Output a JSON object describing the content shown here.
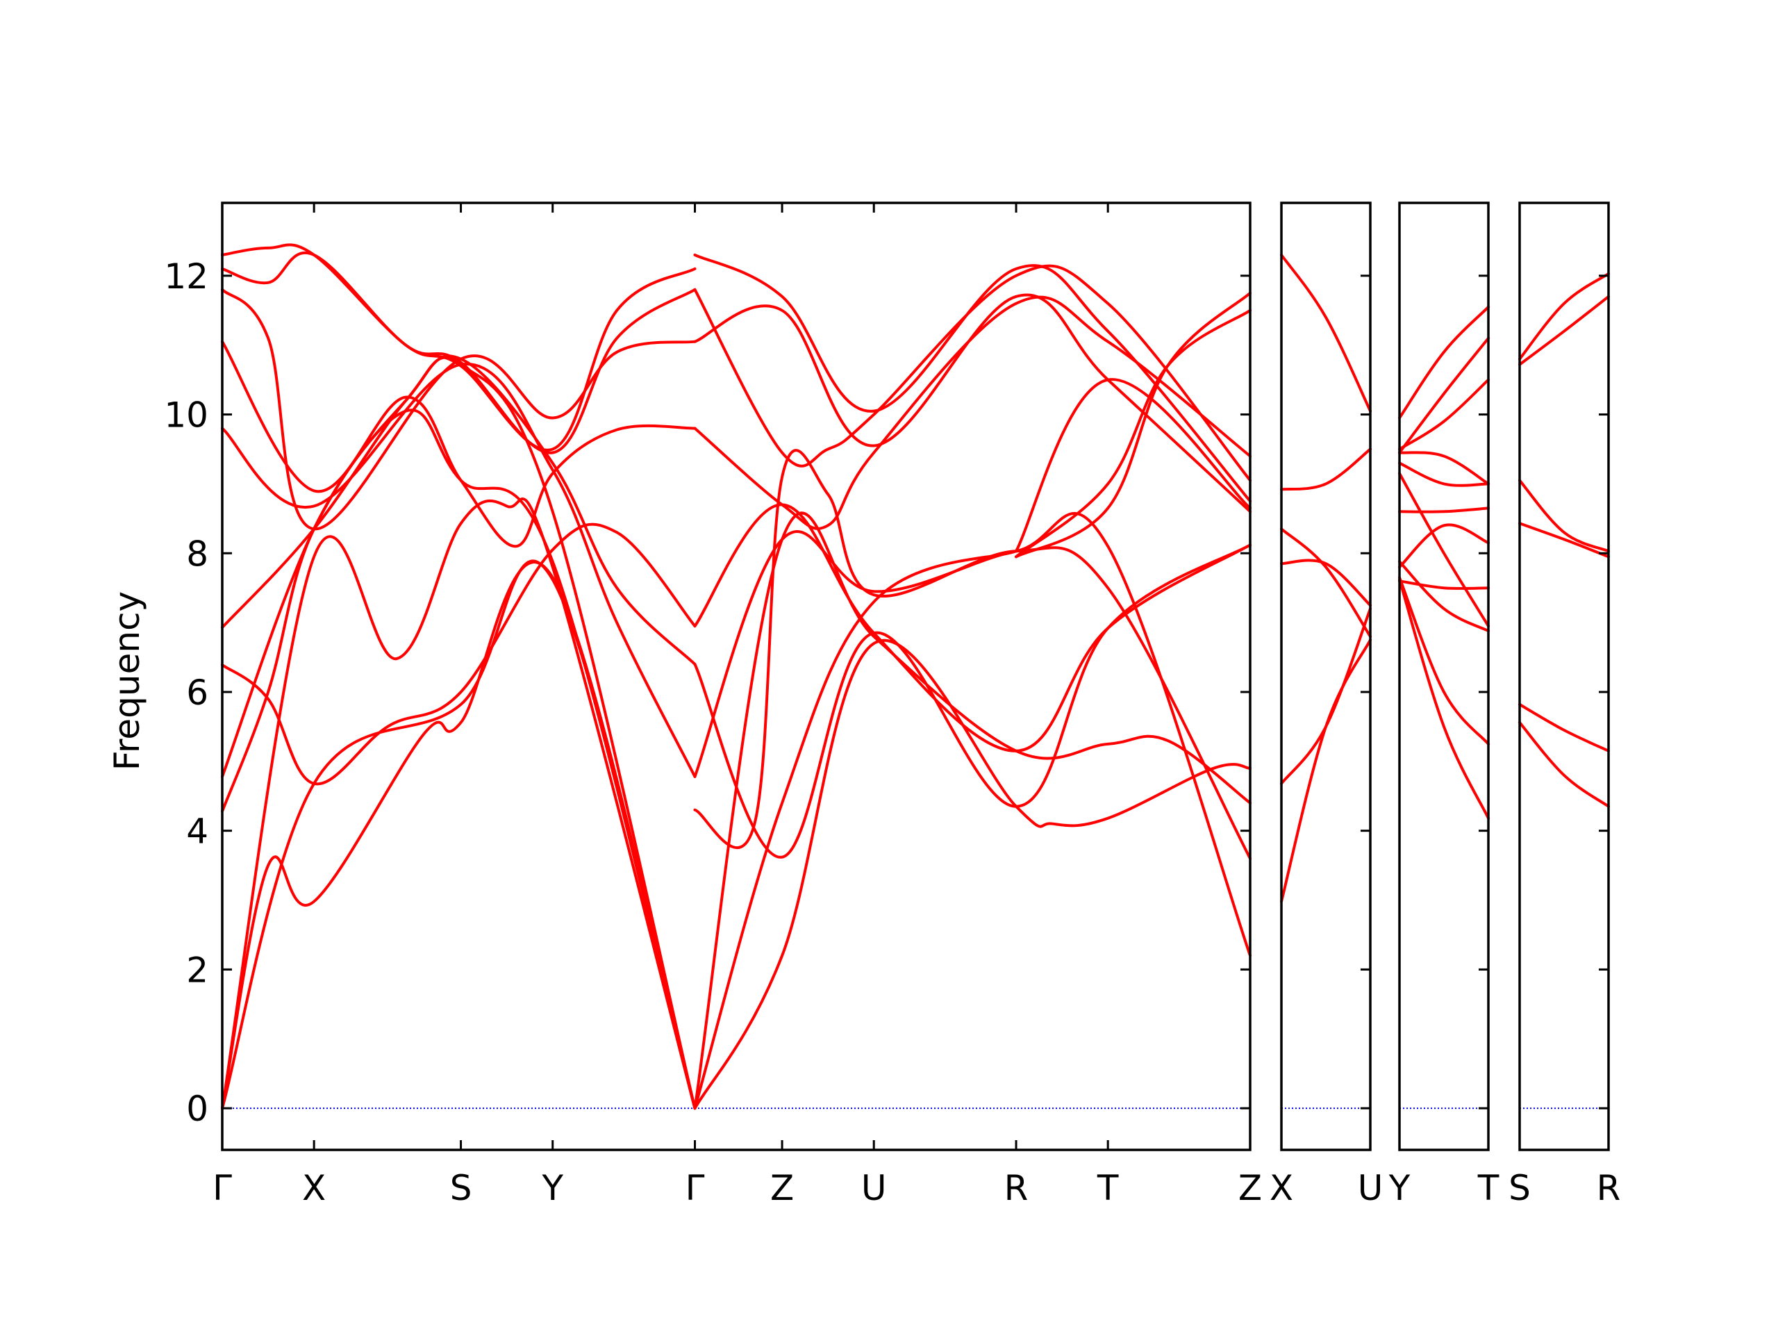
{
  "chart_data": {
    "type": "line",
    "ylabel": "Frequency",
    "ylim": [
      -0.6,
      13.05
    ],
    "yticks": [
      0,
      2,
      4,
      6,
      8,
      10,
      12
    ],
    "line_color": "#ff0000",
    "zero_line_color": "#0000ff",
    "panels": [
      {
        "points": [
          "Γ",
          "X",
          "S",
          "Y",
          "Γ",
          "Z",
          "U",
          "R",
          "T",
          "Z"
        ],
        "point_positions": [
          0,
          1,
          2.6,
          3.6,
          5.15,
          6.1,
          7.1,
          8.65,
          9.65,
          11.2
        ],
        "bands": [
          [
            [
              0,
              0
            ],
            [
              0.5,
              3.5
            ],
            [
              1,
              2.98
            ],
            [
              2.2,
              5.4
            ],
            [
              2.6,
              5.56
            ],
            [
              3.6,
              7.65
            ],
            [
              5.15,
              0
            ]
          ],
          [
            [
              0,
              0
            ],
            [
              1,
              4.68
            ],
            [
              2.6,
              5.82
            ],
            [
              3.6,
              7.62
            ],
            [
              5.15,
              0
            ]
          ],
          [
            [
              0,
              0
            ],
            [
              1,
              7.95
            ],
            [
              1.9,
              6.48
            ],
            [
              2.6,
              8.43
            ],
            [
              3.1,
              8.68
            ],
            [
              3.6,
              7.8
            ],
            [
              5.15,
              0
            ]
          ],
          [
            [
              0,
              4.28
            ],
            [
              0.5,
              6.0
            ],
            [
              1,
              8.35
            ],
            [
              2.0,
              10.05
            ],
            [
              2.6,
              9.05
            ],
            [
              3.6,
              7.88
            ],
            [
              5.15,
              0
            ]
          ],
          [
            [
              0,
              4.78
            ],
            [
              1,
              8.35
            ],
            [
              2.0,
              10.2
            ],
            [
              2.6,
              10.72
            ],
            [
              3.6,
              8.6
            ],
            [
              5.15,
              0
            ]
          ],
          [
            [
              0,
              6.39
            ],
            [
              0.5,
              5.9
            ],
            [
              1,
              4.68
            ],
            [
              1.8,
              5.5
            ],
            [
              2.6,
              6.0
            ],
            [
              3.6,
              8.05
            ],
            [
              4.3,
              8.3
            ],
            [
              5.15,
              6.95
            ]
          ],
          [
            [
              0,
              6.93
            ],
            [
              1,
              8.35
            ],
            [
              2.0,
              10.2
            ],
            [
              2.6,
              10.8
            ],
            [
              3.6,
              9.3
            ],
            [
              4.3,
              7.5
            ],
            [
              5.15,
              6.4
            ]
          ],
          [
            [
              0,
              9.8
            ],
            [
              1,
              8.68
            ],
            [
              2.6,
              10.72
            ],
            [
              3.6,
              9.2
            ],
            [
              4.3,
              7.0
            ],
            [
              5.15,
              4.78
            ]
          ],
          [
            [
              0,
              11.05
            ],
            [
              1,
              8.9
            ],
            [
              2.0,
              10.25
            ],
            [
              2.6,
              9.05
            ],
            [
              3.2,
              8.1
            ],
            [
              3.6,
              9.15
            ],
            [
              4.3,
              9.78
            ],
            [
              5.15,
              9.8
            ]
          ],
          [
            [
              0,
              11.8
            ],
            [
              0.5,
              11.1
            ],
            [
              1,
              8.35
            ],
            [
              2.6,
              10.8
            ],
            [
              3.6,
              9.95
            ],
            [
              4.3,
              10.9
            ],
            [
              5.15,
              11.05
            ]
          ],
          [
            [
              0,
              12.1
            ],
            [
              0.5,
              11.9
            ],
            [
              1,
              12.3
            ],
            [
              2.0,
              11.0
            ],
            [
              2.6,
              10.75
            ],
            [
              3.6,
              9.45
            ],
            [
              4.3,
              11.1
            ],
            [
              5.15,
              11.8
            ]
          ],
          [
            [
              0,
              12.3
            ],
            [
              0.5,
              12.4
            ],
            [
              1,
              12.3
            ],
            [
              2.0,
              11.0
            ],
            [
              2.6,
              10.7
            ],
            [
              3.6,
              9.5
            ],
            [
              4.3,
              11.5
            ],
            [
              5.15,
              12.1
            ]
          ],
          [
            [
              5.15,
              0
            ],
            [
              6.1,
              4.4
            ],
            [
              7.1,
              7.3
            ],
            [
              8.65,
              8.03
            ]
          ],
          [
            [
              5.15,
              0
            ],
            [
              6.1,
              2.2
            ],
            [
              7.1,
              6.7
            ],
            [
              8.65,
              4.35
            ],
            [
              9.05,
              4.1
            ],
            [
              9.65,
              4.18
            ],
            [
              10.8,
              4.9
            ],
            [
              11.2,
              4.9
            ]
          ],
          [
            [
              5.15,
              0
            ],
            [
              6.1,
              8.2
            ],
            [
              7.1,
              6.8
            ],
            [
              8.65,
              5.15
            ],
            [
              9.65,
              5.25
            ],
            [
              10.3,
              5.3
            ],
            [
              11.2,
              4.4
            ]
          ],
          [
            [
              5.15,
              6.4
            ],
            [
              6.1,
              3.62
            ],
            [
              7.1,
              6.85
            ],
            [
              8.65,
              4.35
            ],
            [
              9.65,
              6.92
            ],
            [
              11.2,
              8.12
            ]
          ],
          [
            [
              5.15,
              6.95
            ],
            [
              6.1,
              8.7
            ],
            [
              7.1,
              6.85
            ],
            [
              8.65,
              5.15
            ],
            [
              9.65,
              6.92
            ],
            [
              11.2,
              8.12
            ]
          ],
          [
            [
              5.15,
              4.78
            ],
            [
              6.1,
              8.2
            ],
            [
              7.1,
              7.45
            ],
            [
              8.65,
              8.03
            ],
            [
              9.65,
              8.1
            ],
            [
              11.2,
              2.2
            ]
          ],
          [
            [
              5.15,
              4.3
            ],
            [
              5.8,
              4.1
            ],
            [
              6.1,
              9.1
            ],
            [
              6.6,
              8.85
            ],
            [
              7.1,
              7.4
            ],
            [
              8.65,
              8.03
            ],
            [
              9.65,
              7.5
            ],
            [
              11.2,
              3.6
            ]
          ],
          [
            [
              5.15,
              9.8
            ],
            [
              6.1,
              8.7
            ],
            [
              6.6,
              8.4
            ],
            [
              7.1,
              9.45
            ],
            [
              8.65,
              11.6
            ],
            [
              9.65,
              11.05
            ],
            [
              11.2,
              9.4
            ]
          ],
          [
            [
              5.15,
              11.05
            ],
            [
              6.1,
              11.5
            ],
            [
              7.1,
              9.55
            ],
            [
              8.65,
              11.7
            ],
            [
              9.65,
              10.5
            ],
            [
              11.2,
              8.6
            ]
          ],
          [
            [
              5.15,
              11.8
            ],
            [
              6.1,
              9.45
            ],
            [
              6.6,
              9.5
            ],
            [
              7.1,
              10.0
            ],
            [
              8.65,
              12.0
            ],
            [
              9.65,
              11.6
            ],
            [
              11.2,
              9.05
            ]
          ],
          [
            [
              5.15,
              12.3
            ],
            [
              6.1,
              11.7
            ],
            [
              7.1,
              10.05
            ],
            [
              8.65,
              12.1
            ],
            [
              9.65,
              11.2
            ],
            [
              11.2,
              8.75
            ]
          ],
          [
            [
              8.65,
              7.95
            ],
            [
              9.65,
              9.0
            ],
            [
              10.3,
              10.7
            ],
            [
              11.2,
              11.5
            ]
          ],
          [
            [
              8.65,
              7.95
            ],
            [
              9.65,
              8.65
            ],
            [
              10.3,
              10.7
            ],
            [
              11.2,
              11.75
            ]
          ],
          [
            [
              8.65,
              8.03
            ],
            [
              9.65,
              10.5
            ],
            [
              11.2,
              8.65
            ]
          ]
        ]
      },
      {
        "points": [
          "X",
          "U"
        ],
        "point_positions": [
          0,
          1
        ],
        "bands": [
          [
            [
              0,
              2.98
            ],
            [
              0.5,
              5.5
            ],
            [
              1,
              6.75
            ]
          ],
          [
            [
              0,
              4.68
            ],
            [
              0.5,
              5.5
            ],
            [
              1,
              7.2
            ]
          ],
          [
            [
              0,
              7.85
            ],
            [
              0.5,
              7.85
            ],
            [
              1,
              7.25
            ]
          ],
          [
            [
              0,
              8.35
            ],
            [
              0.5,
              7.8
            ],
            [
              1,
              6.8
            ]
          ],
          [
            [
              0,
              8.92
            ],
            [
              0.5,
              9.0
            ],
            [
              1,
              9.5
            ]
          ],
          [
            [
              0,
              12.3
            ],
            [
              0.5,
              11.4
            ],
            [
              1,
              10.05
            ]
          ]
        ]
      },
      {
        "points": [
          "Y",
          "T"
        ],
        "point_positions": [
          0,
          1
        ],
        "bands": [
          [
            [
              0,
              7.62
            ],
            [
              0.5,
              5.5
            ],
            [
              1,
              4.18
            ]
          ],
          [
            [
              0,
              7.65
            ],
            [
              0.5,
              6.0
            ],
            [
              1,
              5.25
            ]
          ],
          [
            [
              0,
              7.6
            ],
            [
              0.5,
              7.5
            ],
            [
              1,
              7.5
            ]
          ],
          [
            [
              0,
              7.8
            ],
            [
              0.5,
              8.4
            ],
            [
              1,
              8.15
            ]
          ],
          [
            [
              0,
              7.88
            ],
            [
              0.5,
              7.2
            ],
            [
              1,
              6.88
            ]
          ],
          [
            [
              0,
              8.6
            ],
            [
              0.5,
              8.6
            ],
            [
              1,
              8.65
            ]
          ],
          [
            [
              0,
              9.15
            ],
            [
              0.5,
              8.0
            ],
            [
              1,
              6.95
            ]
          ],
          [
            [
              0,
              9.3
            ],
            [
              0.5,
              9.0
            ],
            [
              1,
              9.0
            ]
          ],
          [
            [
              0,
              9.45
            ],
            [
              0.5,
              9.4
            ],
            [
              1,
              9.0
            ]
          ],
          [
            [
              0,
              9.95
            ],
            [
              0.5,
              10.9
            ],
            [
              1,
              11.55
            ]
          ],
          [
            [
              0,
              9.45
            ],
            [
              0.5,
              10.3
            ],
            [
              1,
              11.1
            ]
          ],
          [
            [
              0,
              9.5
            ],
            [
              0.5,
              9.9
            ],
            [
              1,
              10.5
            ]
          ]
        ]
      },
      {
        "points": [
          "S",
          "R"
        ],
        "point_positions": [
          0,
          1
        ],
        "bands": [
          [
            [
              0,
              5.56
            ],
            [
              0.5,
              4.8
            ],
            [
              1,
              4.35
            ]
          ],
          [
            [
              0,
              5.82
            ],
            [
              0.5,
              5.45
            ],
            [
              1,
              5.15
            ]
          ],
          [
            [
              0,
              8.43
            ],
            [
              0.5,
              8.2
            ],
            [
              1,
              7.95
            ]
          ],
          [
            [
              0,
              9.05
            ],
            [
              0.5,
              8.3
            ],
            [
              1,
              8.03
            ]
          ],
          [
            [
              0,
              10.72
            ],
            [
              0.5,
              11.2
            ],
            [
              1,
              11.7
            ]
          ],
          [
            [
              0,
              10.8
            ],
            [
              0.5,
              11.6
            ],
            [
              1,
              12.03
            ]
          ]
        ]
      }
    ]
  }
}
